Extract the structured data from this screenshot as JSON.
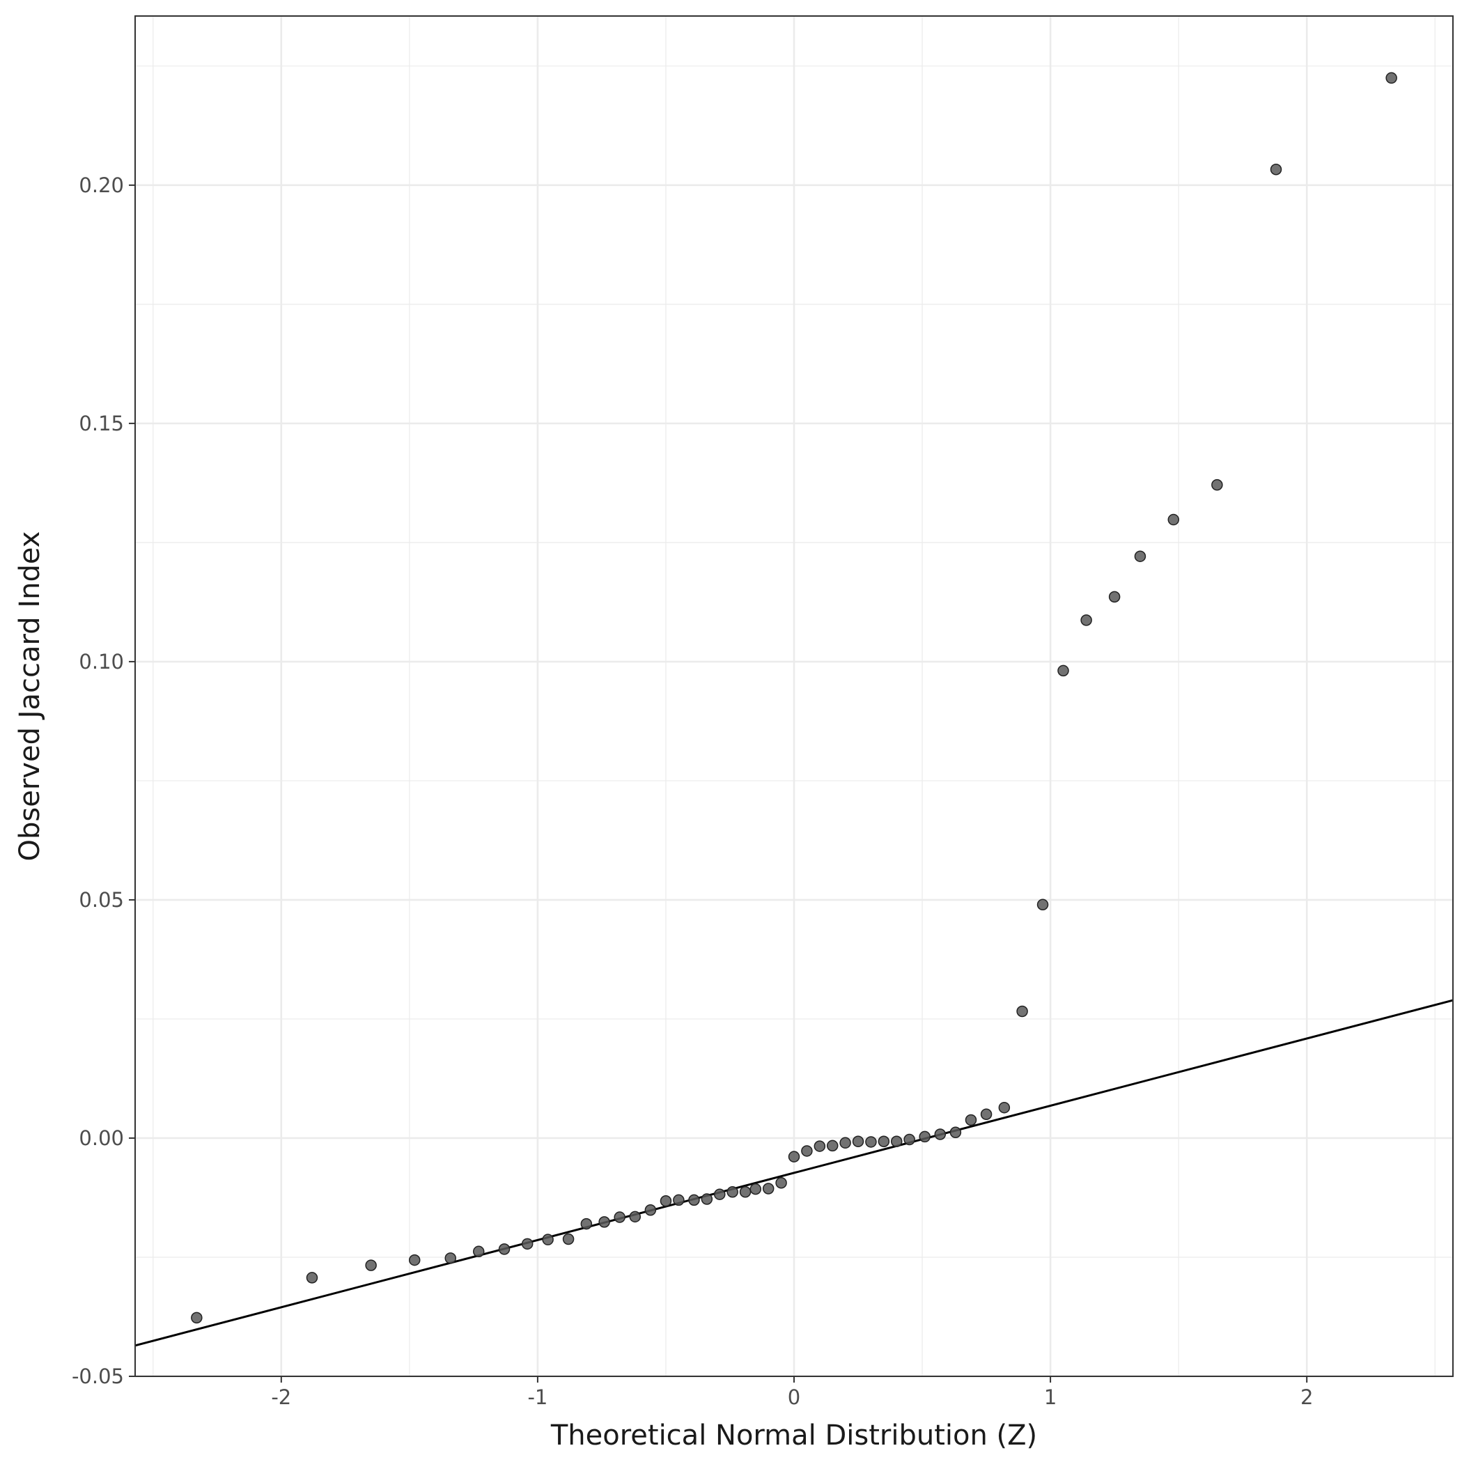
{
  "chart_data": {
    "type": "scatter",
    "subtype": "qq-plot",
    "title": "",
    "xlabel": "Theoretical Normal Distribution (Z)",
    "ylabel": "Observed Jaccard Index",
    "xlim": [
      -2.57,
      2.57
    ],
    "ylim": [
      -0.05,
      0.2355
    ],
    "x_ticks": [
      -2,
      -1,
      0,
      1,
      2
    ],
    "x_tick_labels": [
      "-2",
      "-1",
      "0",
      "1",
      "2"
    ],
    "y_ticks": [
      -0.05,
      0.0,
      0.05,
      0.1,
      0.15,
      0.2
    ],
    "y_tick_labels": [
      "-0.05",
      "0.00",
      "0.05",
      "0.10",
      "0.15",
      "0.20"
    ],
    "grid": true,
    "reference_line": {
      "intercept": -0.0073,
      "slope": 0.0141
    },
    "point_color": "#595959",
    "line_color": "#000000",
    "points": [
      [
        -2.33,
        -0.0377
      ],
      [
        -1.88,
        -0.0293
      ],
      [
        -1.65,
        -0.0267
      ],
      [
        -1.48,
        -0.0256
      ],
      [
        -1.34,
        -0.0252
      ],
      [
        -1.23,
        -0.0238
      ],
      [
        -1.13,
        -0.0233
      ],
      [
        -1.04,
        -0.0222
      ],
      [
        -0.96,
        -0.0213
      ],
      [
        -0.88,
        -0.0212
      ],
      [
        -0.81,
        -0.018
      ],
      [
        -0.74,
        -0.0176
      ],
      [
        -0.68,
        -0.0166
      ],
      [
        -0.62,
        -0.0165
      ],
      [
        -0.56,
        -0.0151
      ],
      [
        -0.5,
        -0.0132
      ],
      [
        -0.45,
        -0.013
      ],
      [
        -0.39,
        -0.013
      ],
      [
        -0.34,
        -0.0128
      ],
      [
        -0.29,
        -0.0118
      ],
      [
        -0.24,
        -0.0113
      ],
      [
        -0.19,
        -0.0113
      ],
      [
        -0.15,
        -0.0107
      ],
      [
        -0.1,
        -0.0106
      ],
      [
        -0.05,
        -0.0094
      ],
      [
        0.0,
        -0.0039
      ],
      [
        0.05,
        -0.0027
      ],
      [
        0.1,
        -0.0017
      ],
      [
        0.15,
        -0.0016
      ],
      [
        0.2,
        -0.001
      ],
      [
        0.25,
        -0.0007
      ],
      [
        0.3,
        -0.0008
      ],
      [
        0.35,
        -0.0007
      ],
      [
        0.4,
        -0.0007
      ],
      [
        0.45,
        -0.0003
      ],
      [
        0.51,
        0.0003
      ],
      [
        0.57,
        0.0008
      ],
      [
        0.63,
        0.0012
      ],
      [
        0.69,
        0.0038
      ],
      [
        0.75,
        0.005
      ],
      [
        0.82,
        0.0064
      ],
      [
        0.89,
        0.0266
      ],
      [
        0.97,
        0.049
      ],
      [
        1.05,
        0.0981
      ],
      [
        1.14,
        0.1087
      ],
      [
        1.25,
        0.1136
      ],
      [
        1.35,
        0.1221
      ],
      [
        1.48,
        0.1298
      ],
      [
        1.65,
        0.1371
      ],
      [
        1.88,
        0.2033
      ],
      [
        2.33,
        0.2225
      ]
    ]
  }
}
